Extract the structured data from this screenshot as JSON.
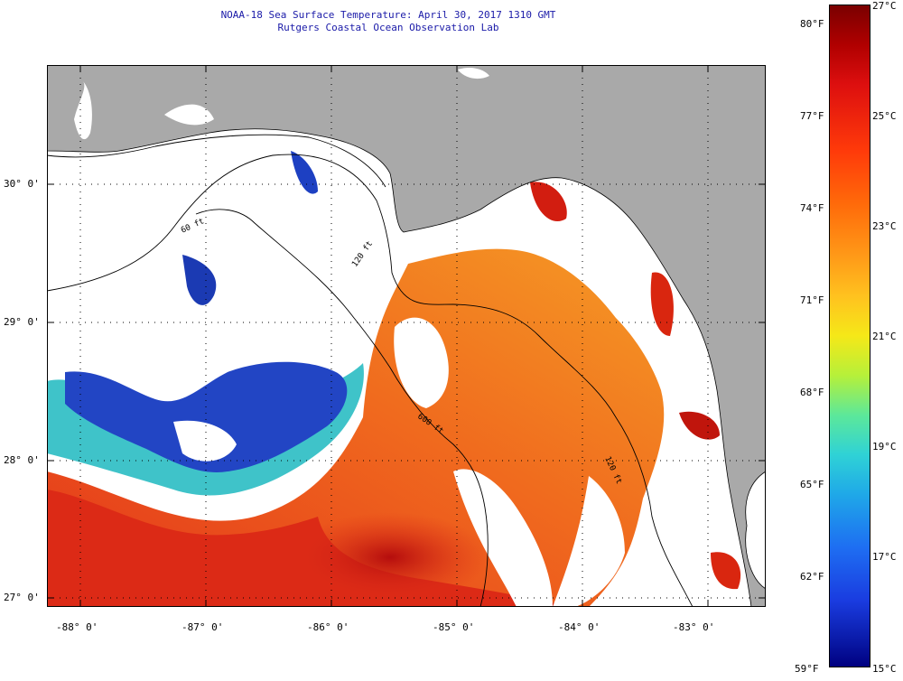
{
  "title": {
    "line1": "NOAA-18 Sea Surface Temperature:  April 30, 2017 1310 GMT",
    "line2": "Rutgers Coastal Ocean Observation Lab"
  },
  "map": {
    "region": "Gulf of Mexico / Florida Big Bend",
    "longitude_ticks": [
      "-88° 0'",
      "-87° 0'",
      "-86° 0'",
      "-85° 0'",
      "-84° 0'",
      "-83° 0'"
    ],
    "latitude_ticks": [
      "30° 0'",
      "29° 0'",
      "28° 0'",
      "27° 0'"
    ],
    "contour_labels": [
      "60 ft",
      "120 ft",
      "600 ft",
      "120 ft"
    ],
    "colors": {
      "land": "#a9a9a9",
      "cloud": "#ffffff",
      "warm_water": "#f37a1d",
      "hot_water": "#c8140c",
      "cold_water": "#1f3fc8",
      "cool_water": "#33c4d6"
    }
  },
  "colorbar": {
    "fahrenheit": [
      "80°F",
      "77°F",
      "74°F",
      "71°F",
      "68°F",
      "65°F",
      "62°F",
      "59°F"
    ],
    "celsius": [
      "27°C",
      "25°C",
      "23°C",
      "21°C",
      "19°C",
      "17°C",
      "15°C"
    ],
    "range_c": [
      15,
      27
    ]
  }
}
